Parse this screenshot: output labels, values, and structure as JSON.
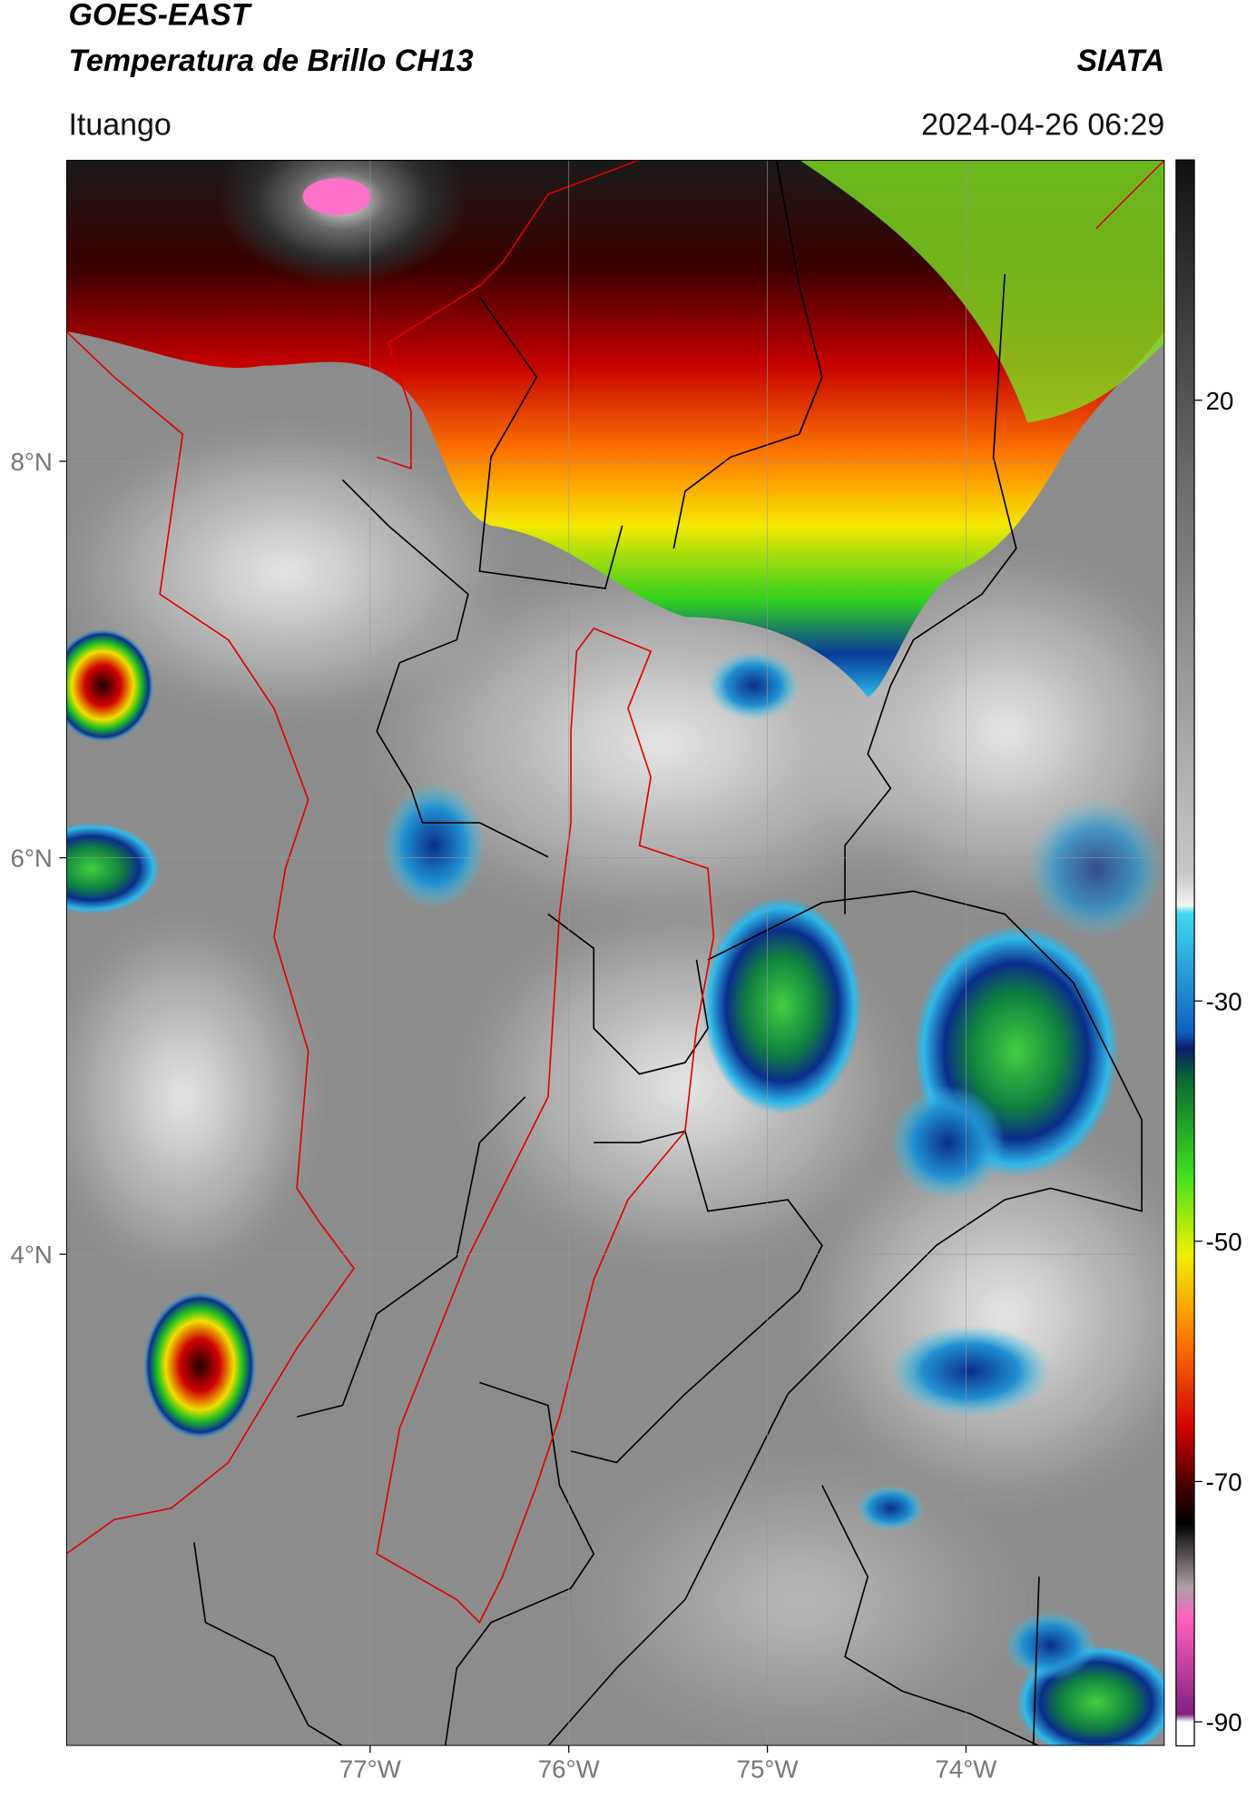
{
  "header": {
    "title": "GOES-EAST",
    "subtitle": "Temperatura de Brillo CH13",
    "source": "SIATA",
    "location": "Ituango",
    "datetime": "2024-04-26 06:29"
  },
  "map": {
    "xlim": [
      -78.53,
      -73.0
    ],
    "ylim": [
      1.52,
      9.52
    ],
    "xticks": [
      {
        "value": -77,
        "label": "77°W"
      },
      {
        "value": -76,
        "label": "76°W"
      },
      {
        "value": -75,
        "label": "75°W"
      },
      {
        "value": -74,
        "label": "74°W"
      }
    ],
    "yticks": [
      {
        "value": 8,
        "label": "8°N"
      },
      {
        "value": 6,
        "label": "6°N"
      },
      {
        "value": 4,
        "label": "4°N"
      }
    ],
    "grid": true
  },
  "colorbar": {
    "range": [
      40,
      -92
    ],
    "ticks": [
      20,
      -30,
      -50,
      -70,
      -90
    ]
  }
}
